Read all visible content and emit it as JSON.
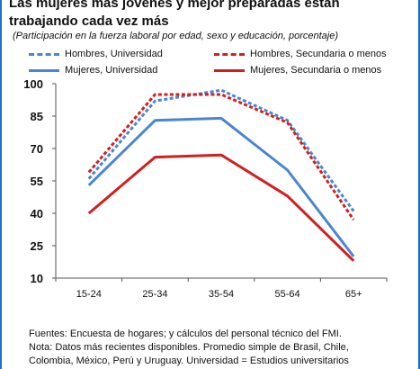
{
  "title": "Las mujeres más jóvenes y mejor preparadas están trabajando cada vez más",
  "subtitle": "(Participación en la fuerza laboral por edad, sexo y educación, porcentaje)",
  "notes": [
    "Fuentes: Encuesta de hogares; y cálculos del personal técnico del FMI.",
    "Nota: Datos más recientes disponibles. Promedio simple de Brasil, Chile,",
    "Colombia, México, Perú y Uruguay. Universidad = Estudios universitarios"
  ],
  "colors": {
    "border": "#1f6fd1",
    "blue": "#4a86d0",
    "red": "#d11f1f"
  },
  "chart_data": {
    "type": "line",
    "title": "Las mujeres más jóvenes y mejor preparadas están trabajando cada vez más",
    "categories": [
      "15-24",
      "25-34",
      "35-54",
      "55-64",
      "65+"
    ],
    "ylim": [
      10,
      100
    ],
    "yticks": [
      10,
      25,
      40,
      55,
      70,
      85,
      100
    ],
    "grid": false,
    "legend_position": "top",
    "series": [
      {
        "name": "Hombres, Universidad",
        "values": [
          56,
          92,
          97,
          83,
          41
        ],
        "color": "#4a86d0",
        "style": "dashed"
      },
      {
        "name": "Hombres, Secundaria o menos",
        "values": [
          59,
          95,
          95,
          82,
          37
        ],
        "color": "#d11f1f",
        "style": "dashed"
      },
      {
        "name": "Mujeres, Universidad",
        "values": [
          53,
          83,
          84,
          60,
          20
        ],
        "color": "#4a86d0",
        "style": "solid"
      },
      {
        "name": "Mujeres, Secundaria o menos",
        "values": [
          40,
          66,
          67,
          48,
          18
        ],
        "color": "#d11f1f",
        "style": "solid"
      }
    ]
  }
}
